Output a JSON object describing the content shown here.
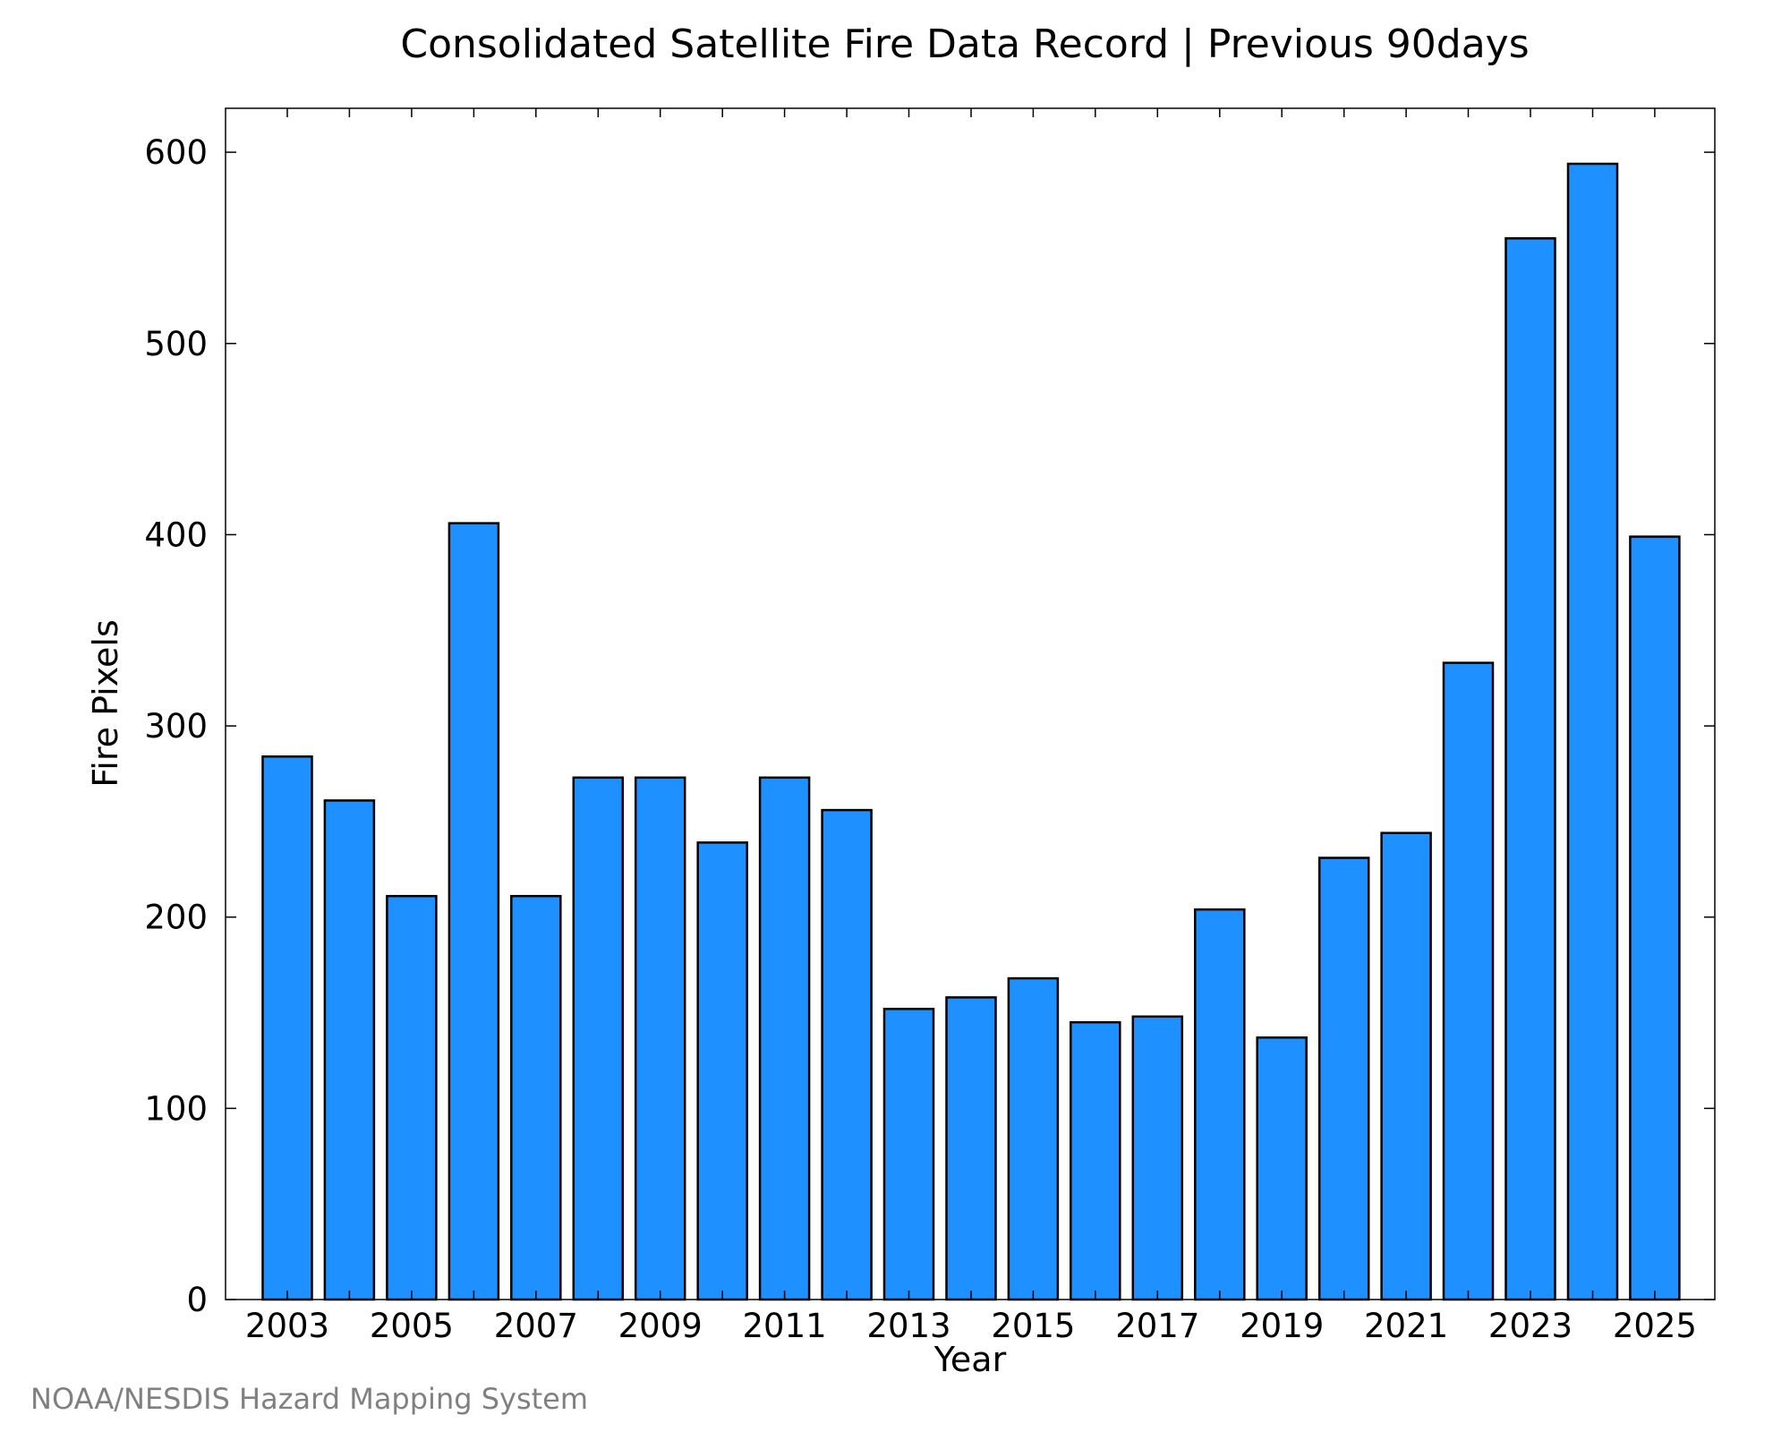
{
  "chart_data": {
    "type": "bar",
    "title": "Consolidated Satellite Fire Data Record | Previous 90days",
    "xlabel": "Year",
    "ylabel": "Fire Pixels",
    "categories": [
      "2003",
      "2004",
      "2005",
      "2006",
      "2007",
      "2008",
      "2009",
      "2010",
      "2011",
      "2012",
      "2013",
      "2014",
      "2015",
      "2016",
      "2017",
      "2018",
      "2019",
      "2020",
      "2021",
      "2022",
      "2023",
      "2024",
      "2025"
    ],
    "values": [
      284,
      261,
      211,
      406,
      211,
      273,
      273,
      239,
      273,
      256,
      152,
      158,
      168,
      145,
      148,
      204,
      137,
      231,
      244,
      333,
      555,
      594,
      399
    ],
    "x_tick_labels": [
      "2003",
      "2005",
      "2007",
      "2009",
      "2011",
      "2013",
      "2015",
      "2017",
      "2019",
      "2021",
      "2023",
      "2025"
    ],
    "y_ticks": [
      0,
      100,
      200,
      300,
      400,
      500,
      600
    ],
    "ylim": [
      0,
      623
    ],
    "grid": false,
    "bar_color": "#1e90ff",
    "edge_color": "#000000"
  },
  "footer": {
    "credit": "NOAA/NESDIS Hazard Mapping System"
  }
}
